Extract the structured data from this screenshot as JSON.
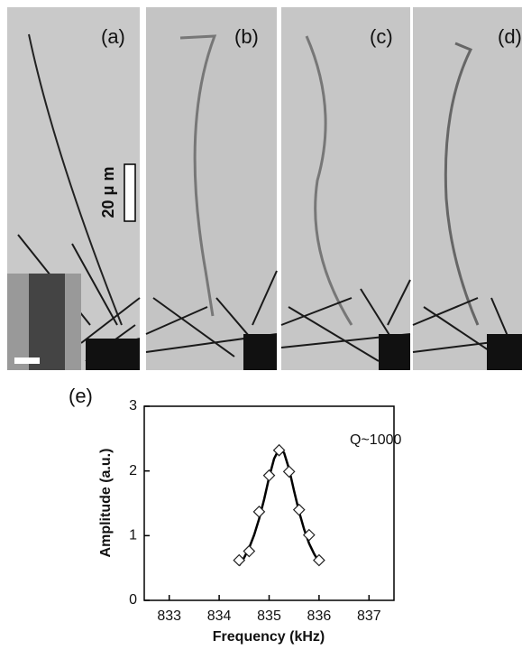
{
  "panels": [
    {
      "label": "(a)"
    },
    {
      "label": "(b)"
    },
    {
      "label": "(c)"
    },
    {
      "label": "(d)"
    }
  ],
  "scale_bar": "20 μ m",
  "chart_data": {
    "type": "scatter",
    "panel_label": "(e)",
    "annotation": "Q~1000",
    "xlabel": "Frequency (kHz)",
    "ylabel": "Amplitude (a.u.)",
    "x": [
      834.4,
      834.6,
      834.8,
      835.0,
      835.2,
      835.4,
      835.6,
      835.8,
      836.0
    ],
    "values": [
      0.62,
      0.76,
      1.37,
      1.93,
      2.32,
      1.99,
      1.4,
      1.01,
      0.62
    ],
    "marker": "diamond",
    "color": "#222222",
    "fit": {
      "x": [
        834.4,
        834.5,
        834.6,
        834.7,
        834.8,
        834.9,
        835.0,
        835.1,
        835.2,
        835.3,
        835.4,
        835.5,
        835.6,
        835.7,
        835.8,
        835.9,
        836.0
      ],
      "values": [
        0.54,
        0.66,
        0.81,
        1.01,
        1.26,
        1.56,
        1.9,
        2.19,
        2.34,
        2.28,
        2.03,
        1.69,
        1.37,
        1.1,
        0.88,
        0.72,
        0.59
      ],
      "color": "#000000"
    },
    "xlim": [
      832.5,
      837.5
    ],
    "ylim": [
      0,
      3
    ],
    "xticks": [
      833,
      834,
      835,
      836,
      837
    ],
    "yticks": [
      0,
      1,
      2,
      3
    ]
  }
}
